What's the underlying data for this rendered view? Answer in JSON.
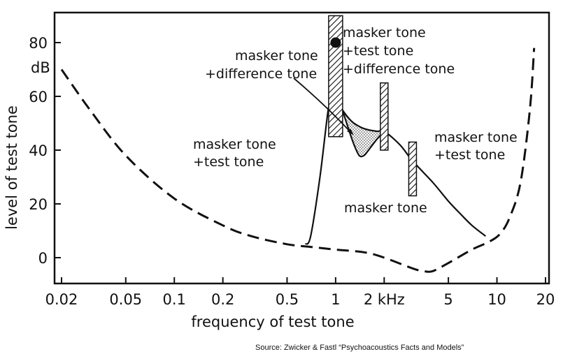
{
  "chart_data": {
    "type": "line",
    "xlabel": "frequency of test tone",
    "ylabel": "level of test tone",
    "y_unit": "dB",
    "x_scale": "log",
    "xlim": [
      0.02,
      20
    ],
    "ylim": [
      -10,
      90
    ],
    "x_ticks": [
      {
        "value": 0.02,
        "label": "0.02"
      },
      {
        "value": 0.05,
        "label": "0.05"
      },
      {
        "value": 0.1,
        "label": "0.1"
      },
      {
        "value": 0.2,
        "label": "0.2"
      },
      {
        "value": 0.5,
        "label": "0.5"
      },
      {
        "value": 1,
        "label": "1"
      },
      {
        "value": 2,
        "label": "2 kHz"
      },
      {
        "value": 5,
        "label": "5"
      },
      {
        "value": 10,
        "label": "10"
      },
      {
        "value": 20,
        "label": "20"
      }
    ],
    "y_ticks": [
      {
        "value": 0,
        "label": "0"
      },
      {
        "value": 20,
        "label": "20"
      },
      {
        "value": 40,
        "label": "40"
      },
      {
        "value": 60,
        "label": "60"
      },
      {
        "value": 80,
        "label": "80"
      }
    ],
    "series": [
      {
        "style": "dashed",
        "points": [
          [
            0.02,
            70
          ],
          [
            0.03,
            55
          ],
          [
            0.05,
            38
          ],
          [
            0.1,
            22
          ],
          [
            0.2,
            12
          ],
          [
            0.3,
            8
          ],
          [
            0.5,
            5
          ],
          [
            0.7,
            4
          ],
          [
            1.0,
            3
          ],
          [
            1.5,
            2
          ],
          [
            2.0,
            0
          ],
          [
            3.0,
            -4
          ],
          [
            3.5,
            -5
          ],
          [
            4.0,
            -5
          ],
          [
            5.0,
            -2
          ],
          [
            7.0,
            3
          ],
          [
            9.0,
            6
          ],
          [
            10.5,
            9
          ],
          [
            12.0,
            15
          ],
          [
            14.0,
            28
          ],
          [
            16.0,
            55
          ],
          [
            17.0,
            78
          ]
        ]
      },
      {
        "style": "solid",
        "points": [
          [
            0.65,
            5
          ],
          [
            0.7,
            8
          ],
          [
            0.8,
            30
          ],
          [
            0.9,
            55
          ],
          [
            0.95,
            57
          ],
          [
            1.05,
            57
          ],
          [
            1.1,
            55
          ],
          [
            1.2,
            52
          ],
          [
            1.3,
            50
          ],
          [
            1.5,
            48
          ],
          [
            1.8,
            47
          ],
          [
            2.0,
            47
          ],
          [
            2.5,
            42
          ],
          [
            3.0,
            36
          ],
          [
            4.0,
            28
          ],
          [
            5.0,
            21
          ],
          [
            6.0,
            16
          ],
          [
            7.0,
            12
          ],
          [
            8.5,
            8
          ]
        ]
      },
      {
        "style": "solid",
        "points": [
          [
            1.1,
            55
          ],
          [
            1.2,
            48
          ],
          [
            1.3,
            42
          ],
          [
            1.4,
            38
          ],
          [
            1.5,
            38
          ],
          [
            1.6,
            40
          ],
          [
            1.8,
            44
          ],
          [
            2.0,
            47
          ]
        ]
      }
    ],
    "markers": [
      {
        "type": "hatched-bar",
        "x": 1.0,
        "y_from": 45,
        "y_to": 90
      },
      {
        "type": "hatched-bar",
        "x": 2.0,
        "y_from": 40,
        "y_to": 65
      },
      {
        "type": "hatched-bar",
        "x": 3.0,
        "y_from": 23,
        "y_to": 43
      },
      {
        "type": "dot",
        "x": 1.0,
        "y": 80
      }
    ],
    "annotations": [
      {
        "lines": [
          "masker tone",
          "+test tone",
          "+difference tone"
        ]
      },
      {
        "lines": [
          "masker tone",
          "+difference tone"
        ]
      },
      {
        "lines": [
          "masker tone",
          "+test tone"
        ]
      },
      {
        "lines": [
          "masker tone",
          "+test tone"
        ]
      },
      {
        "lines": [
          "masker tone"
        ]
      }
    ]
  },
  "source": "Source: Zwicker & Fastl “Psychoacoustics Facts and Models”"
}
